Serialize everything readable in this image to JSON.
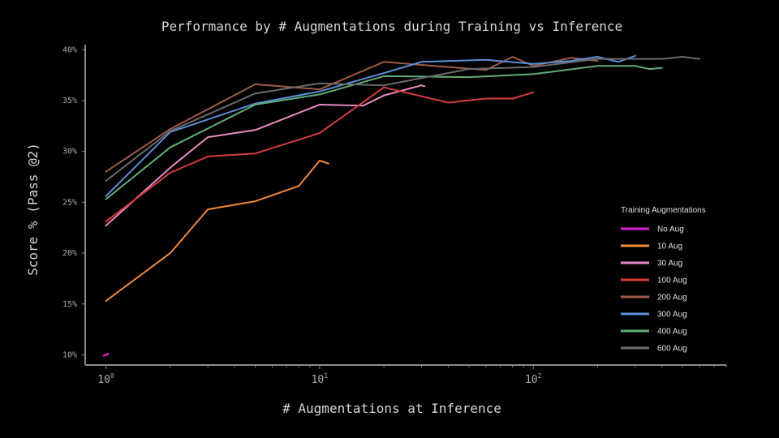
{
  "chart_data": {
    "type": "line",
    "title": "Performance by # Augmentations during Training vs Inference",
    "xlabel": "# Augmentations at Inference",
    "ylabel": "Score % (Pass @2)",
    "xscale": "log",
    "xlim": [
      0.8,
      800
    ],
    "ylim": [
      9,
      40.5
    ],
    "xticks": [
      {
        "value": 1,
        "base": "10",
        "exp": "0"
      },
      {
        "value": 10,
        "base": "10",
        "exp": "1"
      },
      {
        "value": 100,
        "base": "10",
        "exp": "2"
      }
    ],
    "yticks": [
      {
        "value": 10,
        "label": "10%"
      },
      {
        "value": 15,
        "label": "15%"
      },
      {
        "value": 20,
        "label": "20%"
      },
      {
        "value": 25,
        "label": "25%"
      },
      {
        "value": 30,
        "label": "30%"
      },
      {
        "value": 35,
        "label": "35%"
      },
      {
        "value": 40,
        "label": "40%"
      }
    ],
    "grid": false,
    "legend": {
      "title": "Training Augmentations",
      "position": "right"
    },
    "series": [
      {
        "name": "No Aug",
        "color": "#e020d0",
        "x": [
          1
        ],
        "y": [
          10.0
        ]
      },
      {
        "name": "10 Aug",
        "color": "#f08a3c",
        "x": [
          1,
          2,
          3,
          5,
          8,
          10,
          11
        ],
        "y": [
          15.3,
          20.0,
          24.3,
          25.1,
          26.6,
          29.1,
          28.8
        ]
      },
      {
        "name": "30 Aug",
        "color": "#e78ac3",
        "x": [
          1,
          2,
          3,
          5,
          10,
          16,
          20,
          30,
          31
        ],
        "y": [
          22.7,
          28.4,
          31.4,
          32.1,
          34.6,
          34.5,
          35.5,
          36.5,
          36.4
        ]
      },
      {
        "name": "100 Aug",
        "color": "#d53d3d",
        "x": [
          1,
          2,
          3,
          5,
          10,
          20,
          40,
          60,
          80,
          100
        ],
        "y": [
          23.1,
          27.9,
          29.5,
          29.8,
          31.8,
          36.3,
          34.8,
          35.2,
          35.2,
          35.8
        ]
      },
      {
        "name": "200 Aug",
        "color": "#a05a48",
        "x": [
          1,
          2,
          5,
          10,
          20,
          40,
          60,
          80,
          100,
          150,
          200
        ],
        "y": [
          28.0,
          32.2,
          36.6,
          36.1,
          38.8,
          38.3,
          38.0,
          39.3,
          38.4,
          39.2,
          38.9
        ]
      },
      {
        "name": "300 Aug",
        "color": "#5b8fd8",
        "x": [
          1,
          2,
          5,
          10,
          20,
          30,
          60,
          100,
          150,
          200,
          250,
          300
        ],
        "y": [
          25.6,
          31.9,
          34.7,
          35.9,
          37.7,
          38.8,
          39.0,
          38.6,
          38.9,
          39.3,
          38.8,
          39.4
        ]
      },
      {
        "name": "400 Aug",
        "color": "#5fae75",
        "x": [
          1,
          2,
          5,
          10,
          20,
          50,
          100,
          200,
          300,
          350,
          400
        ],
        "y": [
          25.3,
          30.4,
          34.6,
          35.6,
          37.4,
          37.3,
          37.6,
          38.4,
          38.4,
          38.1,
          38.2
        ]
      },
      {
        "name": "600 Aug",
        "color": "#6a6a6a",
        "x": [
          1,
          2,
          5,
          10,
          20,
          50,
          100,
          200,
          300,
          400,
          500,
          600
        ],
        "y": [
          27.1,
          32.0,
          35.7,
          36.7,
          36.5,
          38.1,
          38.3,
          39.1,
          39.1,
          39.1,
          39.3,
          39.1
        ]
      }
    ]
  }
}
